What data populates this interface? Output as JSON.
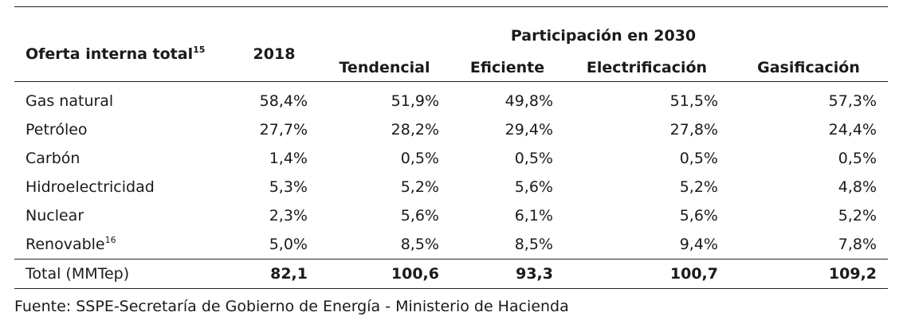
{
  "table": {
    "row_header_label": "Oferta interna total",
    "row_header_note": "15",
    "year_label": "2018",
    "group_label": "Participación en 2030",
    "scenarios": [
      "Tendencial",
      "Eficiente",
      "Electrificación",
      "Gasificación"
    ],
    "rows": [
      {
        "label": "Gas natural",
        "note": "",
        "values": [
          "58,4%",
          "51,9%",
          "49,8%",
          "51,5%",
          "57,3%"
        ]
      },
      {
        "label": "Petróleo",
        "note": "",
        "values": [
          "27,7%",
          "28,2%",
          "29,4%",
          "27,8%",
          "24,4%"
        ]
      },
      {
        "label": "Carbón",
        "note": "",
        "values": [
          "1,4%",
          "0,5%",
          "0,5%",
          "0,5%",
          "0,5%"
        ]
      },
      {
        "label": "Hidroelectricidad",
        "note": "",
        "values": [
          "5,3%",
          "5,2%",
          "5,6%",
          "5,2%",
          "4,8%"
        ]
      },
      {
        "label": "Nuclear",
        "note": "",
        "values": [
          "2,3%",
          "5,6%",
          "6,1%",
          "5,6%",
          "5,2%"
        ]
      },
      {
        "label": "Renovable",
        "note": "16",
        "values": [
          "5,0%",
          "8,5%",
          "8,5%",
          "9,4%",
          "7,8%"
        ]
      }
    ],
    "total": {
      "label": "Total (MMTep)",
      "values": [
        "82,1",
        "100,6",
        "93,3",
        "100,7",
        "109,2"
      ]
    }
  },
  "source": "Fuente: SSPE-Secretaría de Gobierno de Energía - Ministerio de Hacienda"
}
